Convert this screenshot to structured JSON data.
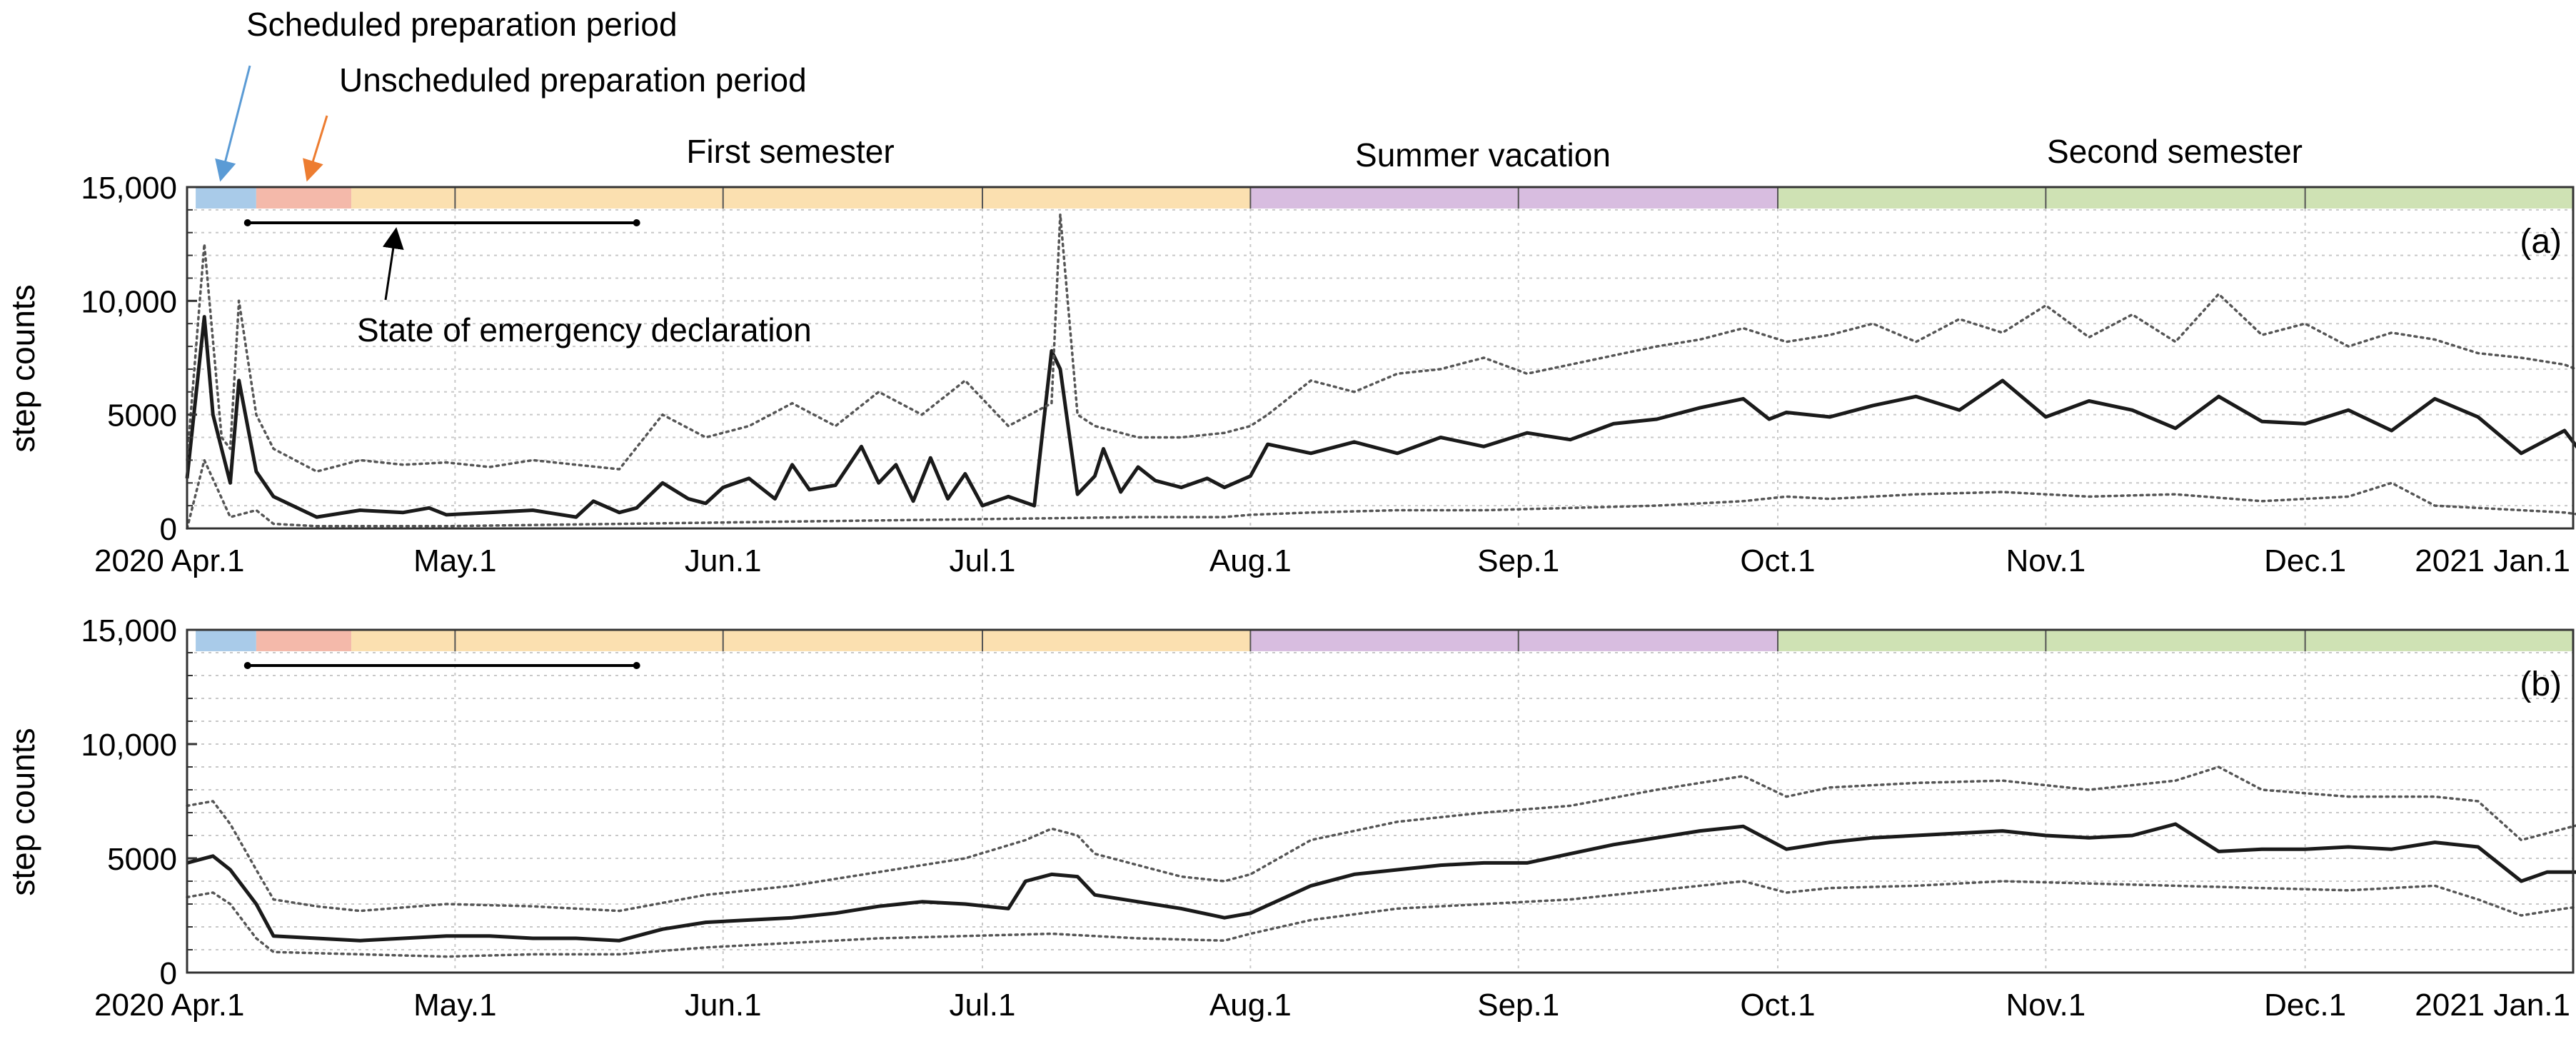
{
  "annotations": {
    "scheduled": "Scheduled preparation period",
    "unscheduled": "Unscheduled preparation period",
    "emergency": "State of emergency declaration",
    "periods": [
      "First semester",
      "Summer vacation",
      "Second semester"
    ]
  },
  "colors": {
    "scheduled": "#a9cbe9",
    "unscheduled": "#f4b9aa",
    "first_semester": "#fbe0b0",
    "summer": "#d8bde0",
    "second_semester": "#cfe2b4",
    "scheduled_arrow": "#5b9bd5",
    "unscheduled_arrow": "#ed7d31",
    "median": "#1a1a1a",
    "quantile": "#555555",
    "grid": "#c8c8c8"
  },
  "chart_data": [
    {
      "type": "line",
      "panel_label": "(a)",
      "ylabel": "step counts",
      "xlabel": "",
      "ylim": [
        0,
        15000
      ],
      "yticks": [
        0,
        5000,
        10000,
        15000
      ],
      "ytick_labels": [
        "0",
        "5000",
        "10,000",
        "15,000"
      ],
      "xlim": [
        0,
        276
      ],
      "xticks": [
        1,
        31,
        62,
        92,
        123,
        154,
        184,
        215,
        245,
        276
      ],
      "xtick_labels": [
        "2020 Apr.1",
        "May.1",
        "Jun.1",
        "Jul.1",
        "Aug.1",
        "Sep.1",
        "Oct.1",
        "Nov.1",
        "Dec.1",
        "2021 Jan.1"
      ],
      "period_bands": [
        {
          "name": "scheduled",
          "start": 1,
          "end": 8
        },
        {
          "name": "unscheduled",
          "start": 8,
          "end": 19
        },
        {
          "name": "first_semester",
          "start": 19,
          "end": 123
        },
        {
          "name": "summer",
          "start": 123,
          "end": 184
        },
        {
          "name": "second_semester",
          "start": 184,
          "end": 288
        }
      ],
      "emergency_period": {
        "start": 7,
        "end": 52
      },
      "series": [
        {
          "name": "median",
          "style": "solid",
          "x": [
            0,
            2,
            3,
            5,
            6,
            8,
            10,
            15,
            20,
            25,
            28,
            30,
            35,
            40,
            45,
            47,
            50,
            52,
            55,
            58,
            60,
            62,
            65,
            68,
            70,
            72,
            75,
            78,
            80,
            82,
            84,
            86,
            88,
            90,
            92,
            95,
            98,
            100,
            101,
            103,
            105,
            106,
            108,
            110,
            112,
            115,
            118,
            120,
            123,
            125,
            130,
            135,
            140,
            145,
            150,
            155,
            160,
            165,
            170,
            175,
            180,
            183,
            185,
            190,
            195,
            200,
            205,
            210,
            215,
            220,
            225,
            230,
            235,
            240,
            245,
            250,
            255,
            260,
            265,
            270,
            275,
            277
          ],
          "values": [
            2200,
            9300,
            5000,
            2000,
            6500,
            2500,
            1400,
            500,
            800,
            700,
            900,
            600,
            700,
            800,
            500,
            1200,
            700,
            900,
            2000,
            1300,
            1100,
            1800,
            2200,
            1300,
            2800,
            1700,
            1900,
            3600,
            2000,
            2800,
            1200,
            3100,
            1300,
            2400,
            1000,
            1400,
            1000,
            7800,
            7000,
            1500,
            2300,
            3500,
            1600,
            2700,
            2100,
            1800,
            2200,
            1800,
            2300,
            3700,
            3300,
            3800,
            3300,
            4000,
            3600,
            4200,
            3900,
            4600,
            4800,
            5300,
            5700,
            4800,
            5100,
            4900,
            5400,
            5800,
            5200,
            6500,
            4900,
            5600,
            5200,
            4400,
            5800,
            4700,
            4600,
            5200,
            4300,
            5700,
            4900,
            3300,
            4300,
            3300
          ]
        },
        {
          "name": "upper quantile",
          "style": "dotted",
          "x": [
            0,
            2,
            4,
            5,
            6,
            8,
            10,
            15,
            20,
            25,
            30,
            35,
            40,
            45,
            50,
            55,
            60,
            65,
            70,
            75,
            80,
            85,
            90,
            95,
            100,
            101,
            103,
            105,
            110,
            115,
            120,
            123,
            125,
            130,
            135,
            140,
            145,
            150,
            155,
            160,
            165,
            170,
            175,
            180,
            185,
            190,
            195,
            200,
            205,
            210,
            215,
            220,
            225,
            230,
            235,
            240,
            245,
            250,
            255,
            260,
            265,
            270,
            275,
            277
          ],
          "values": [
            3000,
            12500,
            4000,
            3500,
            10000,
            5000,
            3500,
            2500,
            3000,
            2800,
            2900,
            2700,
            3000,
            2800,
            2600,
            5000,
            4000,
            4500,
            5500,
            4500,
            6000,
            5000,
            6500,
            4500,
            5500,
            13800,
            5000,
            4500,
            4000,
            4000,
            4200,
            4500,
            5000,
            6500,
            6000,
            6800,
            7000,
            7500,
            6800,
            7200,
            7600,
            8000,
            8300,
            8800,
            8200,
            8500,
            9000,
            8200,
            9200,
            8600,
            9800,
            8400,
            9400,
            8200,
            10300,
            8500,
            9000,
            8000,
            8600,
            8300,
            7700,
            7500,
            7200,
            6900
          ]
        },
        {
          "name": "lower quantile",
          "style": "dotted",
          "x": [
            0,
            2,
            5,
            8,
            10,
            15,
            20,
            30,
            40,
            50,
            60,
            70,
            80,
            90,
            100,
            110,
            120,
            123,
            130,
            140,
            150,
            160,
            170,
            180,
            185,
            190,
            200,
            210,
            220,
            230,
            240,
            250,
            255,
            260,
            270,
            275,
            277
          ],
          "values": [
            0,
            3000,
            500,
            800,
            200,
            100,
            100,
            100,
            150,
            200,
            250,
            300,
            350,
            400,
            450,
            500,
            500,
            600,
            700,
            800,
            800,
            900,
            1000,
            1200,
            1400,
            1300,
            1500,
            1600,
            1400,
            1500,
            1200,
            1400,
            2000,
            1000,
            800,
            700,
            600
          ]
        }
      ]
    },
    {
      "type": "line",
      "panel_label": "(b)",
      "ylabel": "step counts",
      "xlabel": "",
      "ylim": [
        0,
        15000
      ],
      "yticks": [
        0,
        5000,
        10000,
        15000
      ],
      "ytick_labels": [
        "0",
        "5000",
        "10,000",
        "15,000"
      ],
      "xlim": [
        0,
        276
      ],
      "xticks": [
        1,
        31,
        62,
        92,
        123,
        154,
        184,
        215,
        245,
        276
      ],
      "xtick_labels": [
        "2020 Apr.1",
        "May.1",
        "Jun.1",
        "Jul.1",
        "Aug.1",
        "Sep.1",
        "Oct.1",
        "Nov.1",
        "Dec.1",
        "2021 Jan.1"
      ],
      "period_bands": [
        {
          "name": "scheduled",
          "start": 1,
          "end": 8
        },
        {
          "name": "unscheduled",
          "start": 8,
          "end": 19
        },
        {
          "name": "first_semester",
          "start": 19,
          "end": 123
        },
        {
          "name": "summer",
          "start": 123,
          "end": 184
        },
        {
          "name": "second_semester",
          "start": 184,
          "end": 288
        }
      ],
      "emergency_period": {
        "start": 7,
        "end": 52
      },
      "series": [
        {
          "name": "median",
          "style": "solid",
          "x": [
            0,
            3,
            5,
            8,
            10,
            15,
            20,
            25,
            30,
            35,
            40,
            45,
            50,
            55,
            60,
            65,
            70,
            75,
            80,
            85,
            90,
            95,
            97,
            100,
            103,
            105,
            110,
            115,
            120,
            123,
            130,
            135,
            140,
            145,
            150,
            155,
            160,
            165,
            170,
            175,
            180,
            185,
            190,
            195,
            200,
            205,
            210,
            215,
            220,
            225,
            230,
            235,
            240,
            245,
            250,
            255,
            260,
            265,
            270,
            273,
            277
          ],
          "values": [
            4800,
            5100,
            4500,
            3000,
            1600,
            1500,
            1400,
            1500,
            1600,
            1600,
            1500,
            1500,
            1400,
            1900,
            2200,
            2300,
            2400,
            2600,
            2900,
            3100,
            3000,
            2800,
            4000,
            4300,
            4200,
            3400,
            3100,
            2800,
            2400,
            2600,
            3800,
            4300,
            4500,
            4700,
            4800,
            4800,
            5200,
            5600,
            5900,
            6200,
            6400,
            5400,
            5700,
            5900,
            6000,
            6100,
            6200,
            6000,
            5900,
            6000,
            6500,
            5300,
            5400,
            5400,
            5500,
            5400,
            5700,
            5500,
            4000,
            4400,
            4400
          ]
        },
        {
          "name": "upper quantile",
          "style": "dotted",
          "x": [
            0,
            3,
            5,
            8,
            10,
            15,
            20,
            30,
            40,
            50,
            60,
            70,
            80,
            90,
            97,
            100,
            103,
            105,
            110,
            115,
            120,
            123,
            130,
            140,
            150,
            160,
            170,
            180,
            185,
            190,
            200,
            210,
            220,
            230,
            235,
            240,
            250,
            260,
            265,
            270,
            275,
            277
          ],
          "values": [
            7300,
            7500,
            6500,
            4500,
            3200,
            2900,
            2700,
            3000,
            2900,
            2700,
            3400,
            3800,
            4400,
            5000,
            5800,
            6300,
            6000,
            5200,
            4700,
            4200,
            4000,
            4300,
            5800,
            6600,
            7000,
            7300,
            8000,
            8600,
            7700,
            8100,
            8300,
            8400,
            8000,
            8400,
            9000,
            8000,
            7700,
            7700,
            7500,
            5800,
            6300,
            6500
          ]
        },
        {
          "name": "lower quantile",
          "style": "dotted",
          "x": [
            0,
            3,
            5,
            8,
            10,
            20,
            30,
            40,
            50,
            60,
            70,
            80,
            90,
            100,
            105,
            110,
            120,
            123,
            130,
            140,
            150,
            160,
            170,
            180,
            185,
            190,
            200,
            210,
            220,
            230,
            240,
            250,
            260,
            265,
            270,
            275,
            277
          ],
          "values": [
            3300,
            3500,
            3000,
            1500,
            900,
            800,
            700,
            800,
            800,
            1100,
            1300,
            1500,
            1600,
            1700,
            1600,
            1500,
            1400,
            1700,
            2300,
            2800,
            3000,
            3200,
            3600,
            4000,
            3500,
            3700,
            3800,
            4000,
            3900,
            3800,
            3700,
            3600,
            3800,
            3200,
            2500,
            2800,
            2900
          ]
        }
      ]
    }
  ]
}
